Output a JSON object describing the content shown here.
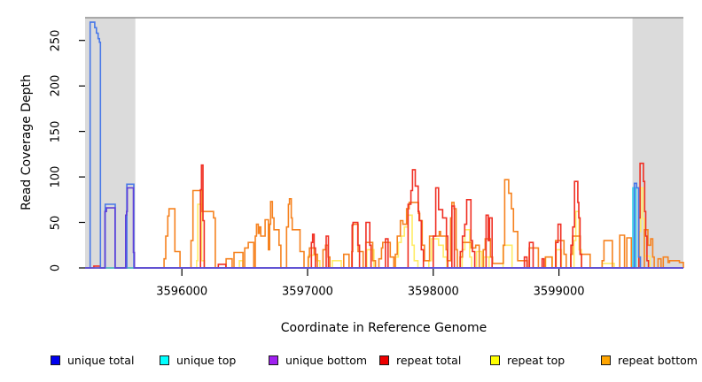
{
  "chart_data": {
    "type": "line",
    "step": true,
    "title": "",
    "xlabel": "Coordinate in Reference Genome",
    "ylabel": "Read Coverage Depth",
    "xlim": [
      3595230,
      3599990
    ],
    "ylim": [
      0,
      275
    ],
    "x_ticks": [
      3596000,
      3597000,
      3598000,
      3599000
    ],
    "x_tick_labels": [
      "3596000",
      "3597000",
      "3598000",
      "3599000"
    ],
    "y_ticks": [
      0,
      50,
      100,
      150,
      200,
      250
    ],
    "y_tick_labels": [
      "0",
      "50",
      "100",
      "150",
      "200",
      "250"
    ],
    "grid": false,
    "shade_color": "#DBDBDB",
    "top_rule_color": "#909090",
    "axis_color": "#000000",
    "shaded_regions": [
      [
        3595230,
        3595630
      ],
      [
        3599585,
        3599990
      ]
    ],
    "legend_position": "bottom",
    "series": [
      {
        "name": "unique total",
        "legend_color": "#0000EE",
        "line_color": "#4878E8",
        "draw_order": 5,
        "points": [
          [
            3595230,
            0
          ],
          [
            3595270,
            270
          ],
          [
            3595307,
            264
          ],
          [
            3595320,
            258
          ],
          [
            3595334,
            252
          ],
          [
            3595344,
            248
          ],
          [
            3595352,
            0
          ],
          [
            3595390,
            70
          ],
          [
            3595470,
            0
          ],
          [
            3595562,
            92
          ],
          [
            3595618,
            0
          ],
          [
            3599600,
            93
          ],
          [
            3599618,
            88
          ],
          [
            3599634,
            12
          ],
          [
            3599648,
            0
          ],
          [
            3599990,
            0
          ]
        ]
      },
      {
        "name": "unique top",
        "legend_color": "#00FFFF",
        "line_color": "#35D3E8",
        "draw_order": 4,
        "points": [
          [
            3595230,
            0
          ],
          [
            3599588,
            88
          ],
          [
            3599612,
            0
          ],
          [
            3599990,
            0
          ]
        ]
      },
      {
        "name": "unique bottom",
        "legend_color": "#A020F0",
        "line_color": "#5F3FD8",
        "draw_order": 6,
        "points": [
          [
            3595230,
            0
          ],
          [
            3595388,
            62
          ],
          [
            3595400,
            66
          ],
          [
            3595468,
            0
          ],
          [
            3595553,
            58
          ],
          [
            3595560,
            62
          ],
          [
            3595566,
            88
          ],
          [
            3595614,
            17
          ],
          [
            3595622,
            0
          ],
          [
            3599990,
            0
          ]
        ]
      },
      {
        "name": "repeat total",
        "legend_color": "#EE0000",
        "line_color": "#F03024",
        "draw_order": 3,
        "points": [
          [
            3595230,
            0
          ],
          [
            3595300,
            2
          ],
          [
            3595350,
            0
          ],
          [
            3596148,
            86
          ],
          [
            3596156,
            113
          ],
          [
            3596168,
            52
          ],
          [
            3596178,
            0
          ],
          [
            3596290,
            4
          ],
          [
            3596350,
            0
          ],
          [
            3597030,
            28
          ],
          [
            3597040,
            37
          ],
          [
            3597052,
            22
          ],
          [
            3597063,
            0
          ],
          [
            3597148,
            35
          ],
          [
            3597166,
            0
          ],
          [
            3597355,
            47
          ],
          [
            3597362,
            50
          ],
          [
            3597400,
            25
          ],
          [
            3597413,
            0
          ],
          [
            3597465,
            50
          ],
          [
            3597495,
            25
          ],
          [
            3597505,
            0
          ],
          [
            3597620,
            32
          ],
          [
            3597640,
            0
          ],
          [
            3597800,
            70
          ],
          [
            3597822,
            85
          ],
          [
            3597835,
            108
          ],
          [
            3597857,
            90
          ],
          [
            3597880,
            62
          ],
          [
            3597888,
            52
          ],
          [
            3597905,
            20
          ],
          [
            3597922,
            0
          ],
          [
            3598000,
            35
          ],
          [
            3598020,
            88
          ],
          [
            3598042,
            64
          ],
          [
            3598075,
            55
          ],
          [
            3598105,
            35
          ],
          [
            3598115,
            0
          ],
          [
            3598148,
            68
          ],
          [
            3598168,
            0
          ],
          [
            3598215,
            18
          ],
          [
            3598232,
            35
          ],
          [
            3598250,
            48
          ],
          [
            3598266,
            75
          ],
          [
            3598300,
            30
          ],
          [
            3598312,
            18
          ],
          [
            3598330,
            0
          ],
          [
            3598420,
            58
          ],
          [
            3598438,
            30
          ],
          [
            3598448,
            55
          ],
          [
            3598468,
            0
          ],
          [
            3598725,
            12
          ],
          [
            3598745,
            0
          ],
          [
            3598765,
            28
          ],
          [
            3598795,
            0
          ],
          [
            3598866,
            10
          ],
          [
            3598880,
            0
          ],
          [
            3598975,
            28
          ],
          [
            3598993,
            48
          ],
          [
            3599015,
            0
          ],
          [
            3599095,
            25
          ],
          [
            3599110,
            45
          ],
          [
            3599124,
            95
          ],
          [
            3599150,
            72
          ],
          [
            3599158,
            55
          ],
          [
            3599168,
            15
          ],
          [
            3599180,
            0
          ],
          [
            3599636,
            55
          ],
          [
            3599645,
            115
          ],
          [
            3599672,
            95
          ],
          [
            3599682,
            62
          ],
          [
            3599690,
            35
          ],
          [
            3599700,
            8
          ],
          [
            3599712,
            0
          ],
          [
            3599990,
            0
          ]
        ]
      },
      {
        "name": "repeat top",
        "legend_color": "#FFFF00",
        "line_color": "#FFEC66",
        "draw_order": 1,
        "points": [
          [
            3595230,
            0
          ],
          [
            3596118,
            8
          ],
          [
            3596126,
            70
          ],
          [
            3596158,
            8
          ],
          [
            3596180,
            0
          ],
          [
            3596458,
            8
          ],
          [
            3596486,
            0
          ],
          [
            3597008,
            14
          ],
          [
            3597070,
            8
          ],
          [
            3597098,
            0
          ],
          [
            3597197,
            8
          ],
          [
            3597268,
            0
          ],
          [
            3597472,
            20
          ],
          [
            3597528,
            0
          ],
          [
            3597700,
            12
          ],
          [
            3597722,
            28
          ],
          [
            3597745,
            35
          ],
          [
            3597770,
            45
          ],
          [
            3597798,
            58
          ],
          [
            3597832,
            25
          ],
          [
            3597848,
            8
          ],
          [
            3597878,
            0
          ],
          [
            3597965,
            8
          ],
          [
            3597985,
            32
          ],
          [
            3598042,
            25
          ],
          [
            3598080,
            12
          ],
          [
            3598108,
            0
          ],
          [
            3598230,
            20
          ],
          [
            3598252,
            42
          ],
          [
            3598290,
            12
          ],
          [
            3598305,
            0
          ],
          [
            3598345,
            18
          ],
          [
            3598386,
            0
          ],
          [
            3598402,
            12
          ],
          [
            3598444,
            0
          ],
          [
            3598556,
            25
          ],
          [
            3598627,
            0
          ],
          [
            3598894,
            12
          ],
          [
            3598948,
            0
          ],
          [
            3598979,
            20
          ],
          [
            3599020,
            0
          ],
          [
            3599120,
            30
          ],
          [
            3599134,
            62
          ],
          [
            3599160,
            20
          ],
          [
            3599178,
            0
          ],
          [
            3599345,
            5
          ],
          [
            3599440,
            0
          ],
          [
            3599640,
            40
          ],
          [
            3599650,
            88
          ],
          [
            3599668,
            54
          ],
          [
            3599678,
            13
          ],
          [
            3599725,
            0
          ],
          [
            3599990,
            0
          ]
        ]
      },
      {
        "name": "repeat bottom",
        "legend_color": "#FFA500",
        "line_color": "#F6821F",
        "draw_order": 2,
        "points": [
          [
            3595230,
            0
          ],
          [
            3595858,
            10
          ],
          [
            3595872,
            35
          ],
          [
            3595888,
            57
          ],
          [
            3595898,
            65
          ],
          [
            3595944,
            18
          ],
          [
            3595985,
            0
          ],
          [
            3596073,
            30
          ],
          [
            3596088,
            85
          ],
          [
            3596160,
            62
          ],
          [
            3596252,
            55
          ],
          [
            3596266,
            0
          ],
          [
            3596352,
            10
          ],
          [
            3596400,
            0
          ],
          [
            3596415,
            17
          ],
          [
            3596486,
            0
          ],
          [
            3596500,
            22
          ],
          [
            3596528,
            28
          ],
          [
            3596572,
            0
          ],
          [
            3596584,
            35
          ],
          [
            3596594,
            48
          ],
          [
            3596608,
            38
          ],
          [
            3596616,
            45
          ],
          [
            3596628,
            35
          ],
          [
            3596662,
            53
          ],
          [
            3596688,
            20
          ],
          [
            3596698,
            48
          ],
          [
            3596706,
            73
          ],
          [
            3596720,
            55
          ],
          [
            3596733,
            42
          ],
          [
            3596773,
            25
          ],
          [
            3596788,
            0
          ],
          [
            3596833,
            45
          ],
          [
            3596848,
            70
          ],
          [
            3596856,
            76
          ],
          [
            3596870,
            55
          ],
          [
            3596878,
            42
          ],
          [
            3596940,
            18
          ],
          [
            3596972,
            0
          ],
          [
            3597005,
            12
          ],
          [
            3597015,
            22
          ],
          [
            3597052,
            15
          ],
          [
            3597078,
            0
          ],
          [
            3597123,
            20
          ],
          [
            3597143,
            25
          ],
          [
            3597163,
            12
          ],
          [
            3597178,
            0
          ],
          [
            3597288,
            15
          ],
          [
            3597330,
            0
          ],
          [
            3597352,
            18
          ],
          [
            3597360,
            48
          ],
          [
            3597402,
            18
          ],
          [
            3597442,
            0
          ],
          [
            3597463,
            28
          ],
          [
            3597518,
            8
          ],
          [
            3597540,
            0
          ],
          [
            3597568,
            10
          ],
          [
            3597588,
            22
          ],
          [
            3597598,
            28
          ],
          [
            3597658,
            12
          ],
          [
            3597686,
            0
          ],
          [
            3597698,
            15
          ],
          [
            3597714,
            35
          ],
          [
            3597738,
            52
          ],
          [
            3597758,
            48
          ],
          [
            3597788,
            65
          ],
          [
            3597808,
            72
          ],
          [
            3597882,
            60
          ],
          [
            3597892,
            52
          ],
          [
            3597912,
            25
          ],
          [
            3597930,
            8
          ],
          [
            3597970,
            35
          ],
          [
            3598048,
            40
          ],
          [
            3598058,
            35
          ],
          [
            3598102,
            20
          ],
          [
            3598112,
            8
          ],
          [
            3598138,
            55
          ],
          [
            3598148,
            72
          ],
          [
            3598165,
            65
          ],
          [
            3598182,
            20
          ],
          [
            3598192,
            0
          ],
          [
            3598213,
            12
          ],
          [
            3598233,
            28
          ],
          [
            3598302,
            22
          ],
          [
            3598338,
            25
          ],
          [
            3598366,
            0
          ],
          [
            3598398,
            20
          ],
          [
            3598413,
            32
          ],
          [
            3598455,
            12
          ],
          [
            3598472,
            5
          ],
          [
            3598558,
            25
          ],
          [
            3598568,
            97
          ],
          [
            3598600,
            82
          ],
          [
            3598622,
            65
          ],
          [
            3598638,
            40
          ],
          [
            3598672,
            8
          ],
          [
            3598748,
            0
          ],
          [
            3598763,
            22
          ],
          [
            3598836,
            0
          ],
          [
            3598892,
            12
          ],
          [
            3598945,
            0
          ],
          [
            3598973,
            30
          ],
          [
            3599040,
            15
          ],
          [
            3599058,
            0
          ],
          [
            3599093,
            15
          ],
          [
            3599108,
            35
          ],
          [
            3599170,
            15
          ],
          [
            3599248,
            0
          ],
          [
            3599343,
            8
          ],
          [
            3599358,
            30
          ],
          [
            3599425,
            0
          ],
          [
            3599484,
            36
          ],
          [
            3599522,
            0
          ],
          [
            3599540,
            33
          ],
          [
            3599576,
            0
          ],
          [
            3599680,
            42
          ],
          [
            3599708,
            25
          ],
          [
            3599730,
            32
          ],
          [
            3599746,
            12
          ],
          [
            3599758,
            0
          ],
          [
            3599788,
            10
          ],
          [
            3599812,
            0
          ],
          [
            3599830,
            12
          ],
          [
            3599868,
            6
          ],
          [
            3599880,
            8
          ],
          [
            3599958,
            6
          ],
          [
            3599985,
            6
          ],
          [
            3599990,
            0
          ]
        ]
      }
    ]
  }
}
